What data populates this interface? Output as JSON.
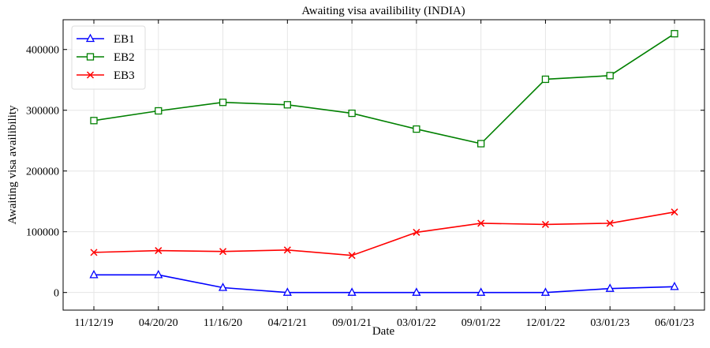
{
  "chart_data": {
    "type": "line",
    "title": "Awaiting visa availibility (INDIA)",
    "xlabel": "Date",
    "ylabel": "Awaiting visa availibility",
    "categories": [
      "11/12/19",
      "04/20/20",
      "11/16/20",
      "04/21/21",
      "09/01/21",
      "03/01/22",
      "09/01/22",
      "12/01/22",
      "03/01/23",
      "06/01/23"
    ],
    "ylim": [
      -29000,
      449000
    ],
    "yticks": [
      0,
      100000,
      200000,
      300000,
      400000
    ],
    "ytick_labels": [
      "0",
      "100000",
      "200000",
      "300000",
      "400000"
    ],
    "grid": true,
    "legend_position": "top-left",
    "series": [
      {
        "name": "EB1",
        "color": "#0000ff",
        "marker": "triangle",
        "values": [
          29000,
          29000,
          8000,
          0,
          0,
          0,
          0,
          0,
          6500,
          9500
        ]
      },
      {
        "name": "EB2",
        "color": "#008000",
        "marker": "square",
        "values": [
          283000,
          299000,
          313000,
          309000,
          295000,
          269000,
          245000,
          351000,
          357000,
          426000
        ]
      },
      {
        "name": "EB3",
        "color": "#ff0000",
        "marker": "x",
        "values": [
          66000,
          69000,
          67500,
          70000,
          61000,
          99000,
          114000,
          112000,
          114000,
          132500
        ]
      }
    ]
  }
}
